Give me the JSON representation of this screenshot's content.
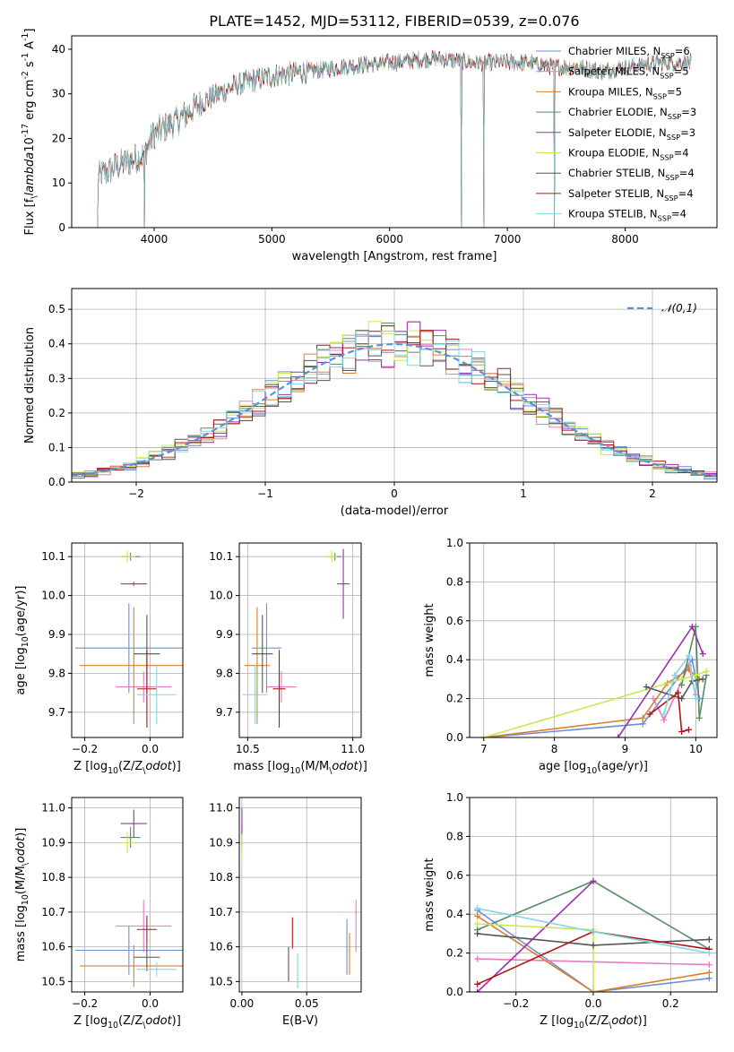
{
  "title": "PLATE=1452, MJD=53112, FIBERID=0539, z=0.076",
  "colors": {
    "chabrier_miles": "#6d8ed9",
    "salpeter_miles": "#e87ac0",
    "kroupa_miles": "#d98030",
    "chabrier_elodie": "#5a8a64",
    "salpeter_elodie": "#9b2faf",
    "kroupa_elodie": "#cbe84e",
    "chabrier_stelib": "#555555",
    "salpeter_stelib": "#b21515",
    "kroupa_stelib": "#7fd8e0",
    "normal": "#5b8fd6"
  },
  "chart_data": [
    {
      "id": "spectrum",
      "type": "line",
      "xlabel": "wavelength [Angstrom, rest frame]",
      "ylabel": "Flux [f$_\\lambda$10$^{-17}$ erg cm$^{-2}$ s$^{-1}$ A$^{-1}$]",
      "xlim": [
        3300,
        8780
      ],
      "ylim": [
        0,
        43
      ],
      "xticks": [
        "4000",
        "5000",
        "6000",
        "7000",
        "8000"
      ],
      "yticks": [
        "0",
        "10",
        "20",
        "30",
        "40"
      ],
      "grid": false,
      "legend_position": "right",
      "legend": [
        {
          "label": "Chabrier MILES, N$_{SSP}$=6"
        },
        {
          "label": "Salpeter MILES, N$_{SSP}$=5"
        },
        {
          "label": "Kroupa MILES, N$_{SSP}$=5"
        },
        {
          "label": "Chabrier ELODIE, N$_{SSP}$=3"
        },
        {
          "label": "Salpeter ELODIE, N$_{SSP}$=3"
        },
        {
          "label": "Kroupa ELODIE, N$_{SSP}$=4"
        },
        {
          "label": "Chabrier STELIB, N$_{SSP}$=4"
        },
        {
          "label": "Salpeter STELIB, N$_{SSP}$=4"
        },
        {
          "label": "Kroupa STELIB, N$_{SSP}$=4"
        }
      ],
      "continuum_x": [
        3500,
        3700,
        3900,
        4000,
        4200,
        4400,
        4700,
        5000,
        5300,
        5600,
        6000,
        6400,
        6700,
        7000,
        7200,
        7400,
        7600,
        7800,
        8000,
        8300,
        8500
      ],
      "continuum_y": [
        11,
        14,
        16,
        21,
        24,
        28,
        32,
        34,
        35,
        36,
        37,
        38,
        37,
        37,
        37,
        36,
        36,
        35,
        36,
        37,
        37
      ],
      "x_range_model": [
        3520,
        8560
      ],
      "gaps_x": [
        3920,
        6610,
        6800,
        7400
      ]
    },
    {
      "id": "residuals",
      "type": "histogram",
      "xlabel": "(data-model)/error",
      "ylabel": "Normed distribution",
      "xlim": [
        -2.5,
        2.5
      ],
      "ylim": [
        0,
        0.56
      ],
      "xticks": [
        "−2",
        "−1",
        "0",
        "1",
        "2"
      ],
      "yticks": [
        "0.0",
        "0.1",
        "0.2",
        "0.3",
        "0.4",
        "0.5"
      ],
      "grid": true,
      "legend_position": "upper right",
      "reference_label": "$\\mathcal{N}(0,1)$",
      "bin_width": 0.1,
      "reference_curve": {
        "mean": 0,
        "sigma": 1
      }
    },
    {
      "id": "age_vs_Z",
      "type": "scatter",
      "xlabel": "Z [log$_{10}$(Z/Z$_\\odot$)]",
      "ylabel": "age  [log$_{10}$(age/yr)]",
      "xlim": [
        -0.24,
        0.1
      ],
      "ylim": [
        9.635,
        10.135
      ],
      "xticks": [
        "−0.2",
        "0.0"
      ],
      "yticks": [
        "9.7",
        "9.8",
        "9.9",
        "10.0",
        "10.1"
      ],
      "grid": true,
      "points": [
        {
          "series": "chabrier_miles",
          "x": -0.065,
          "y": 9.865,
          "xerr": 0.165,
          "yerr": 0.115
        },
        {
          "series": "salpeter_miles",
          "x": -0.02,
          "y": 9.765,
          "xerr": 0.085,
          "yerr": 0.04
        },
        {
          "series": "kroupa_miles",
          "x": -0.05,
          "y": 9.82,
          "xerr": 0.165,
          "yerr": 0.15
        },
        {
          "series": "chabrier_elodie",
          "x": -0.06,
          "y": 10.1,
          "xerr": 0.03,
          "yerr": 0.01
        },
        {
          "series": "salpeter_elodie",
          "x": -0.05,
          "y": 10.03,
          "xerr": 0.04,
          "yerr": 0.005
        },
        {
          "series": "kroupa_elodie",
          "x": -0.07,
          "y": 10.1,
          "xerr": 0.025,
          "yerr": 0.015
        },
        {
          "series": "chabrier_stelib",
          "x": -0.01,
          "y": 9.85,
          "xerr": 0.04,
          "yerr": 0.1
        },
        {
          "series": "salpeter_stelib",
          "x": -0.01,
          "y": 9.76,
          "xerr": 0.03,
          "yerr": 0.1
        },
        {
          "series": "kroupa_stelib",
          "x": 0.02,
          "y": 9.745,
          "xerr": 0.06,
          "yerr": 0.075
        }
      ]
    },
    {
      "id": "age_vs_mass",
      "type": "scatter",
      "xlabel": "mass [log$_{10}$(M/M$_\\odot$)]",
      "ylabel": "",
      "xlim": [
        10.46,
        11.04
      ],
      "ylim": [
        9.635,
        10.135
      ],
      "xticks": [
        "10.5",
        "11.0"
      ],
      "yticks": [
        "9.7",
        "9.8",
        "9.9",
        "10.0",
        "10.1"
      ],
      "grid": true,
      "points": [
        {
          "series": "chabrier_miles",
          "x": 10.59,
          "y": 9.865,
          "xerr": 0.07,
          "yerr": 0.115
        },
        {
          "series": "salpeter_miles",
          "x": 10.66,
          "y": 9.765,
          "xerr": 0.07,
          "yerr": 0.04
        },
        {
          "series": "kroupa_miles",
          "x": 10.545,
          "y": 9.82,
          "xerr": 0.06,
          "yerr": 0.15
        },
        {
          "series": "chabrier_elodie",
          "x": 10.915,
          "y": 10.1,
          "xerr": 0.03,
          "yerr": 0.01
        },
        {
          "series": "salpeter_elodie",
          "x": 10.955,
          "y": 10.03,
          "xerr": 0.03,
          "yerr": 0.09
        },
        {
          "series": "kroupa_elodie",
          "x": 10.9,
          "y": 10.1,
          "xerr": 0.025,
          "yerr": 0.015
        },
        {
          "series": "chabrier_stelib",
          "x": 10.57,
          "y": 9.85,
          "xerr": 0.05,
          "yerr": 0.1
        },
        {
          "series": "salpeter_stelib",
          "x": 10.65,
          "y": 9.76,
          "xerr": 0.03,
          "yerr": 0.1
        },
        {
          "series": "kroupa_stelib",
          "x": 10.535,
          "y": 9.745,
          "xerr": 0.06,
          "yerr": 0.075
        }
      ]
    },
    {
      "id": "weights_vs_age",
      "type": "line",
      "xlabel": "age  [log$_{10}$(age/yr)]",
      "ylabel": "mass weight",
      "xlim": [
        6.8,
        10.3
      ],
      "ylim": [
        0,
        1.0
      ],
      "xticks": [
        "7",
        "8",
        "9",
        "10"
      ],
      "yticks": [
        "0.0",
        "0.2",
        "0.4",
        "0.6",
        "0.8",
        "1.0"
      ],
      "grid": true,
      "series": [
        {
          "name": "chabrier_miles",
          "x": [
            7.0,
            9.25,
            9.95,
            10.05
          ],
          "y": [
            0.0,
            0.07,
            0.4,
            0.2
          ]
        },
        {
          "name": "salpeter_miles",
          "x": [
            9.4,
            9.55,
            9.9,
            10.0
          ],
          "y": [
            0.2,
            0.09,
            0.37,
            0.22
          ]
        },
        {
          "name": "kroupa_miles",
          "x": [
            7.0,
            9.25,
            9.6,
            9.9,
            10.05
          ],
          "y": [
            0.0,
            0.1,
            0.28,
            0.35,
            0.3
          ]
        },
        {
          "name": "chabrier_elodie",
          "x": [
            9.8,
            10.0,
            10.05,
            10.15
          ],
          "y": [
            0.27,
            0.57,
            0.1,
            0.32
          ]
        },
        {
          "name": "salpeter_elodie",
          "x": [
            8.9,
            9.95,
            10.1
          ],
          "y": [
            0.0,
            0.57,
            0.43
          ]
        },
        {
          "name": "kroupa_elodie",
          "x": [
            7.0,
            9.8,
            10.0,
            10.15
          ],
          "y": [
            0.0,
            0.3,
            0.32,
            0.34
          ]
        },
        {
          "name": "chabrier_stelib",
          "x": [
            9.3,
            9.8,
            9.95,
            10.1
          ],
          "y": [
            0.26,
            0.2,
            0.29,
            0.3
          ]
        },
        {
          "name": "salpeter_stelib",
          "x": [
            9.35,
            9.75,
            9.8,
            9.9
          ],
          "y": [
            0.12,
            0.23,
            0.03,
            0.04
          ]
        },
        {
          "name": "kroupa_stelib",
          "x": [
            9.55,
            9.7,
            9.9,
            10.0
          ],
          "y": [
            0.12,
            0.32,
            0.42,
            0.2
          ]
        }
      ]
    },
    {
      "id": "mass_vs_Z",
      "type": "scatter",
      "xlabel": "Z [log$_{10}$(Z/Z$_\\odot$)]",
      "ylabel": "mass [log$_{10}$(M/M$_\\odot$)]",
      "xlim": [
        -0.24,
        0.1
      ],
      "ylim": [
        10.47,
        11.03
      ],
      "xticks": [
        "−0.2",
        "0.0"
      ],
      "yticks": [
        "10.5",
        "10.6",
        "10.7",
        "10.8",
        "10.9",
        "11.0"
      ],
      "grid": true,
      "points": [
        {
          "series": "chabrier_miles",
          "x": -0.065,
          "y": 10.59,
          "xerr": 0.165,
          "yerr": 0.07
        },
        {
          "series": "salpeter_miles",
          "x": -0.02,
          "y": 10.66,
          "xerr": 0.085,
          "yerr": 0.075
        },
        {
          "series": "kroupa_miles",
          "x": -0.05,
          "y": 10.545,
          "xerr": 0.165,
          "yerr": 0.06
        },
        {
          "series": "chabrier_elodie",
          "x": -0.06,
          "y": 10.915,
          "xerr": 0.03,
          "yerr": 0.03
        },
        {
          "series": "salpeter_elodie",
          "x": -0.05,
          "y": 10.955,
          "xerr": 0.04,
          "yerr": 0.04
        },
        {
          "series": "kroupa_elodie",
          "x": -0.07,
          "y": 10.9,
          "xerr": 0.025,
          "yerr": 0.03
        },
        {
          "series": "chabrier_stelib",
          "x": -0.01,
          "y": 10.57,
          "xerr": 0.04,
          "yerr": 0.04
        },
        {
          "series": "salpeter_stelib",
          "x": -0.01,
          "y": 10.65,
          "xerr": 0.03,
          "yerr": 0.04
        },
        {
          "series": "kroupa_stelib",
          "x": 0.02,
          "y": 10.535,
          "xerr": 0.06,
          "yerr": 0.02
        }
      ]
    },
    {
      "id": "mass_vs_EBV",
      "type": "scatter",
      "xlabel": "E(B-V)",
      "ylabel": "",
      "xlim": [
        -0.002,
        0.092
      ],
      "ylim": [
        10.47,
        11.03
      ],
      "xticks": [
        "0.00",
        "0.05"
      ],
      "yticks": [
        "10.5",
        "10.6",
        "10.7",
        "10.8",
        "10.9",
        "11.0"
      ],
      "grid": true,
      "points": [
        {
          "series": "chabrier_miles",
          "x": 0.081,
          "y": 10.6,
          "xerr": 0,
          "yerr": 0.08
        },
        {
          "series": "salpeter_miles",
          "x": 0.088,
          "y": 10.66,
          "xerr": 0,
          "yerr": 0.075
        },
        {
          "series": "kroupa_miles",
          "x": 0.083,
          "y": 10.58,
          "xerr": 0,
          "yerr": 0.06
        },
        {
          "series": "chabrier_elodie",
          "x": 0.0,
          "y": 10.91,
          "xerr": 0,
          "yerr": 0.04
        },
        {
          "series": "salpeter_elodie",
          "x": 0.0,
          "y": 10.95,
          "xerr": 0,
          "yerr": 0.05
        },
        {
          "series": "kroupa_elodie",
          "x": 0.0,
          "y": 10.885,
          "xerr": 0,
          "yerr": 0.04
        },
        {
          "series": "chabrier_stelib",
          "x": 0.036,
          "y": 10.55,
          "xerr": 0,
          "yerr": 0.05
        },
        {
          "series": "salpeter_stelib",
          "x": 0.039,
          "y": 10.64,
          "xerr": 0,
          "yerr": 0.045
        },
        {
          "series": "kroupa_stelib",
          "x": 0.043,
          "y": 10.53,
          "xerr": 0,
          "yerr": 0.05
        }
      ]
    },
    {
      "id": "weights_vs_Z",
      "type": "line",
      "xlabel": "Z [log$_{10}$(Z/Z$_\\odot$)]",
      "ylabel": "mass weight",
      "xlim": [
        -0.32,
        0.32
      ],
      "ylim": [
        0,
        1.0
      ],
      "xticks": [
        "−0.2",
        "0.0",
        "0.2"
      ],
      "yticks": [
        "0.0",
        "0.2",
        "0.4",
        "0.6",
        "0.8",
        "1.0"
      ],
      "grid": true,
      "series": [
        {
          "name": "chabrier_miles",
          "x": [
            -0.3,
            0.0,
            0.3
          ],
          "y": [
            0.42,
            0.0,
            0.07
          ]
        },
        {
          "name": "salpeter_miles",
          "x": [
            -0.3,
            0.3
          ],
          "y": [
            0.17,
            0.14
          ]
        },
        {
          "name": "kroupa_miles",
          "x": [
            -0.3,
            0.0,
            0.3
          ],
          "y": [
            0.39,
            0.0,
            0.1
          ]
        },
        {
          "name": "chabrier_elodie",
          "x": [
            -0.3,
            0.0,
            0.3
          ],
          "y": [
            0.32,
            0.57,
            0.22
          ]
        },
        {
          "name": "salpeter_elodie",
          "x": [
            -0.3,
            0.0
          ],
          "y": [
            0.0,
            0.57
          ]
        },
        {
          "name": "kroupa_elodie",
          "x": [
            -0.3,
            0.0,
            0.0
          ],
          "y": [
            0.35,
            0.32,
            0.0
          ]
        },
        {
          "name": "chabrier_stelib",
          "x": [
            -0.3,
            0.0,
            0.3
          ],
          "y": [
            0.3,
            0.24,
            0.27
          ]
        },
        {
          "name": "salpeter_stelib",
          "x": [
            -0.3,
            0.0,
            0.3
          ],
          "y": [
            0.04,
            0.31,
            0.22
          ]
        },
        {
          "name": "kroupa_stelib",
          "x": [
            -0.3,
            0.0,
            0.3
          ],
          "y": [
            0.43,
            0.31,
            0.2
          ]
        }
      ]
    }
  ]
}
